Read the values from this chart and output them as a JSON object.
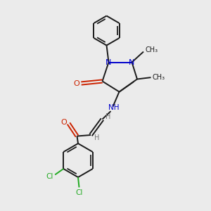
{
  "bg_color": "#ebebeb",
  "bond_color": "#1a1a1a",
  "N_color": "#0000cc",
  "O_color": "#cc2200",
  "Cl_color": "#22aa22",
  "H_color": "#777777",
  "fig_w": 3.0,
  "fig_h": 3.0,
  "dpi": 100,
  "xlim": [
    0,
    10
  ],
  "ylim": [
    0,
    10
  ]
}
